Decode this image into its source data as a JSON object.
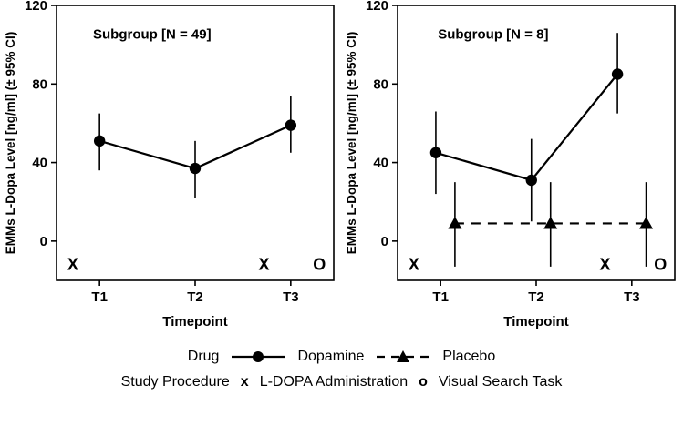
{
  "legend": {
    "drug_label": "Drug",
    "dopamine_label": "Dopamine",
    "placebo_label": "Placebo",
    "procedure_label": "Study Procedure",
    "x_marker": "x",
    "x_label": "L-DOPA Administration",
    "o_marker": "o",
    "o_label": "Visual Search Task"
  },
  "chart_data": [
    {
      "type": "line",
      "title": "Subgroup [N = 49]",
      "xlabel": "Timepoint",
      "ylabel": "EMMs L-Dopa Level [ng/ml] (± 95% CI)",
      "categories": [
        "T1",
        "T2",
        "T3"
      ],
      "category_positions": [
        1,
        2,
        3
      ],
      "xlim": [
        0.55,
        3.45
      ],
      "ylim": [
        -20,
        120
      ],
      "yticks": [
        0,
        40,
        80,
        120
      ],
      "grid": false,
      "panel_label": {
        "text": "Subgroup [N = 49]",
        "x": 1.55,
        "y": 103
      },
      "series": [
        {
          "name": "Dopamine",
          "marker": "circle",
          "line": "solid",
          "x": [
            1,
            2,
            3
          ],
          "values": [
            51,
            37,
            59
          ],
          "ci_low": [
            36,
            22,
            45
          ],
          "ci_high": [
            65,
            51,
            74
          ]
        }
      ],
      "annotations": [
        {
          "text": "X",
          "x": 0.72,
          "y": -12
        },
        {
          "text": "X",
          "x": 2.72,
          "y": -12
        },
        {
          "text": "O",
          "x": 3.3,
          "y": -12
        }
      ]
    },
    {
      "type": "line",
      "title": "Subgroup [N = 8]",
      "xlabel": "Timepoint",
      "ylabel": "EMMs L-Dopa Level [ng/ml] (± 95% CI)",
      "categories": [
        "T1",
        "T2",
        "T3"
      ],
      "category_positions": [
        1,
        2,
        3
      ],
      "xlim": [
        0.55,
        3.45
      ],
      "ylim": [
        -20,
        120
      ],
      "yticks": [
        0,
        40,
        80,
        120
      ],
      "grid": false,
      "panel_label": {
        "text": "Subgroup [N = 8]",
        "x": 1.55,
        "y": 103
      },
      "series": [
        {
          "name": "Dopamine",
          "marker": "circle",
          "line": "solid",
          "x": [
            0.95,
            1.95,
            2.85
          ],
          "values": [
            45,
            31,
            85
          ],
          "ci_low": [
            24,
            10,
            65
          ],
          "ci_high": [
            66,
            52,
            106
          ]
        },
        {
          "name": "Placebo",
          "marker": "triangle",
          "line": "dashed",
          "x": [
            1.15,
            2.15,
            3.15
          ],
          "values": [
            9,
            9,
            9
          ],
          "ci_low": [
            -13,
            -13,
            -13
          ],
          "ci_high": [
            30,
            30,
            30
          ]
        }
      ],
      "annotations": [
        {
          "text": "X",
          "x": 0.72,
          "y": -12
        },
        {
          "text": "X",
          "x": 2.72,
          "y": -12
        },
        {
          "text": "O",
          "x": 3.3,
          "y": -12
        }
      ]
    }
  ],
  "colors": {
    "foreground": "#000000",
    "background": "#ffffff"
  }
}
